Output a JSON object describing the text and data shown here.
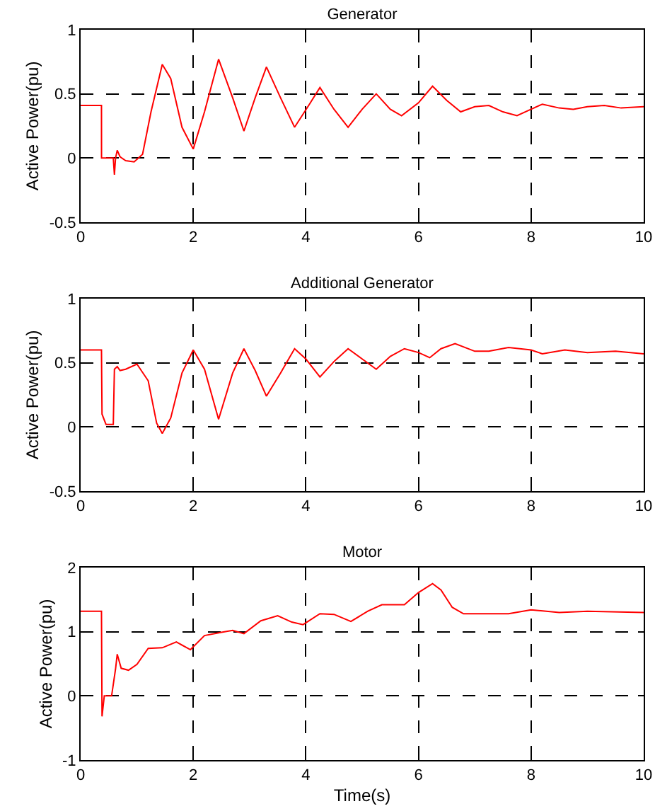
{
  "chart_data": [
    {
      "type": "line",
      "title": "Generator",
      "ylabel": "Active Power(pu)",
      "x": [
        0,
        0.37,
        0.371,
        0.58,
        0.6,
        0.62,
        0.65,
        0.7,
        0.8,
        0.95,
        1.1,
        1.25,
        1.45,
        1.6,
        1.8,
        2.0,
        2.2,
        2.45,
        2.7,
        2.9,
        3.1,
        3.3,
        3.55,
        3.8,
        4.05,
        4.25,
        4.5,
        4.75,
        5.0,
        5.25,
        5.5,
        5.7,
        6.0,
        6.25,
        6.5,
        6.75,
        7.0,
        7.25,
        7.5,
        7.75,
        8.0,
        8.2,
        8.5,
        8.75,
        9.0,
        9.3,
        9.6,
        10
      ],
      "series": [
        {
          "color": "#ff0000",
          "values": [
            0.41,
            0.41,
            0,
            0,
            -0.13,
            0,
            0.06,
            0.01,
            -0.02,
            -0.03,
            0.03,
            0.36,
            0.73,
            0.62,
            0.24,
            0.07,
            0.36,
            0.77,
            0.47,
            0.21,
            0.47,
            0.71,
            0.47,
            0.24,
            0.41,
            0.55,
            0.38,
            0.24,
            0.38,
            0.5,
            0.38,
            0.33,
            0.43,
            0.56,
            0.45,
            0.36,
            0.4,
            0.41,
            0.36,
            0.33,
            0.38,
            0.42,
            0.39,
            0.38,
            0.4,
            0.41,
            0.39,
            0.4
          ]
        }
      ],
      "xlim": [
        0,
        10
      ],
      "xticks": [
        0,
        2,
        4,
        6,
        8,
        10
      ],
      "ylim": [
        -0.5,
        1
      ],
      "yticks": [
        -0.5,
        0,
        0.5,
        1
      ],
      "grid": true
    },
    {
      "type": "line",
      "title": "Additional Generator",
      "ylabel": "Active Power(pu)",
      "x": [
        0,
        0.37,
        0.38,
        0.45,
        0.58,
        0.6,
        0.65,
        0.7,
        0.8,
        1.0,
        1.2,
        1.35,
        1.45,
        1.6,
        1.8,
        2.0,
        2.2,
        2.45,
        2.7,
        2.9,
        3.1,
        3.3,
        3.55,
        3.8,
        4.0,
        4.25,
        4.5,
        4.75,
        5.0,
        5.25,
        5.5,
        5.75,
        6.0,
        6.2,
        6.4,
        6.65,
        7.0,
        7.25,
        7.6,
        8.0,
        8.2,
        8.6,
        9.0,
        9.5,
        10
      ],
      "series": [
        {
          "color": "#ff0000",
          "values": [
            0.6,
            0.6,
            0.1,
            0.02,
            0.02,
            0.45,
            0.47,
            0.44,
            0.45,
            0.49,
            0.36,
            0.03,
            -0.05,
            0.07,
            0.42,
            0.6,
            0.45,
            0.06,
            0.42,
            0.61,
            0.44,
            0.24,
            0.42,
            0.61,
            0.53,
            0.39,
            0.51,
            0.61,
            0.53,
            0.45,
            0.55,
            0.61,
            0.58,
            0.54,
            0.61,
            0.65,
            0.59,
            0.59,
            0.62,
            0.6,
            0.57,
            0.6,
            0.58,
            0.59,
            0.57
          ]
        }
      ],
      "xlim": [
        0,
        10
      ],
      "xticks": [
        0,
        2,
        4,
        6,
        8,
        10
      ],
      "ylim": [
        -0.5,
        1
      ],
      "yticks": [
        -0.5,
        0,
        0.5,
        1
      ],
      "grid": true
    },
    {
      "type": "line",
      "title": "Motor",
      "xlabel": "Time(s)",
      "ylabel": "Active Power(pu)",
      "x": [
        0,
        0.37,
        0.38,
        0.42,
        0.55,
        0.62,
        0.65,
        0.72,
        0.85,
        1.0,
        1.2,
        1.45,
        1.7,
        1.95,
        2.2,
        2.5,
        2.7,
        2.9,
        3.2,
        3.5,
        3.75,
        3.95,
        4.25,
        4.5,
        4.8,
        5.1,
        5.35,
        5.75,
        6.0,
        6.25,
        6.4,
        6.6,
        6.8,
        7.2,
        7.6,
        8.0,
        8.5,
        9.0,
        10
      ],
      "series": [
        {
          "color": "#ff0000",
          "values": [
            1.32,
            1.32,
            -0.32,
            0,
            0,
            0.42,
            0.65,
            0.43,
            0.4,
            0.49,
            0.74,
            0.75,
            0.84,
            0.72,
            0.94,
            0.99,
            1.02,
            0.97,
            1.17,
            1.25,
            1.15,
            1.11,
            1.28,
            1.27,
            1.16,
            1.32,
            1.42,
            1.42,
            1.61,
            1.75,
            1.65,
            1.38,
            1.28,
            1.28,
            1.28,
            1.34,
            1.3,
            1.32,
            1.3
          ]
        }
      ],
      "xlim": [
        0,
        10
      ],
      "xticks": [
        0,
        2,
        4,
        6,
        8,
        10
      ],
      "ylim": [
        -1,
        2
      ],
      "yticks": [
        -1,
        0,
        1,
        2
      ],
      "grid": true
    }
  ]
}
